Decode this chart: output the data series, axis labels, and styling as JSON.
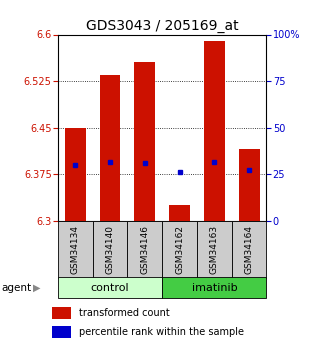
{
  "title": "GDS3043 / 205169_at",
  "samples": [
    "GSM34134",
    "GSM34140",
    "GSM34146",
    "GSM34162",
    "GSM34163",
    "GSM34164"
  ],
  "groups": [
    "control",
    "control",
    "control",
    "imatinib",
    "imatinib",
    "imatinib"
  ],
  "bar_values": [
    6.45,
    6.535,
    6.555,
    6.325,
    6.59,
    6.415
  ],
  "bar_base": 6.3,
  "percentile_values": [
    6.39,
    6.395,
    6.393,
    6.378,
    6.395,
    6.382
  ],
  "ylim": [
    6.3,
    6.6
  ],
  "yticks_left": [
    6.3,
    6.375,
    6.45,
    6.525,
    6.6
  ],
  "yticks_right": [
    0,
    25,
    50,
    75,
    100
  ],
  "bar_color": "#cc1100",
  "percentile_color": "#0000cc",
  "control_color": "#ccffcc",
  "imatinib_color": "#44cc44",
  "xlabel_gray_bg": "#cccccc",
  "title_fontsize": 10,
  "tick_fontsize": 7,
  "label_fontsize": 6.5,
  "group_fontsize": 8,
  "legend_fontsize": 7,
  "bar_width": 0.6
}
